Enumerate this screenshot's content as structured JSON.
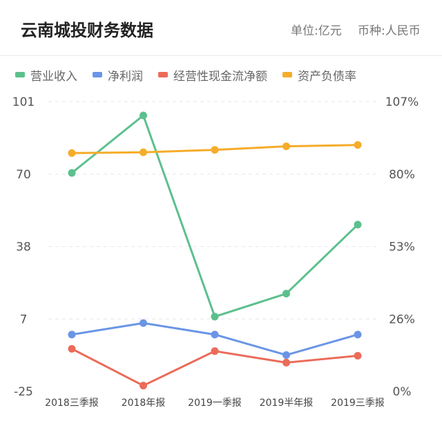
{
  "header": {
    "title": "云南城投财务数据",
    "unit": "单位:亿元",
    "currency": "币种:人民币"
  },
  "colors": {
    "revenue": "#5cc08d",
    "net_profit": "#6a95e6",
    "cash_flow": "#eb6b59",
    "debt_ratio": "#f5ac2a",
    "grid": "#e6e6e6"
  },
  "chart_data": {
    "type": "line",
    "categories": [
      "2018三季报",
      "2018年报",
      "2019一季报",
      "2019半年报",
      "2019三季报"
    ],
    "y_left": {
      "ticks": [
        "101",
        "70",
        "38",
        "7",
        "-25"
      ],
      "range": [
        -25,
        101
      ]
    },
    "y_right": {
      "ticks": [
        "107%",
        "80%",
        "53%",
        "26%",
        "0%"
      ],
      "range": [
        0,
        107
      ]
    },
    "series": [
      {
        "name": "营业收入",
        "axis": "left",
        "color": "#5cc08d",
        "values": [
          70,
          95,
          7.5,
          17.5,
          47.5
        ]
      },
      {
        "name": "净利润",
        "axis": "left",
        "color": "#6a95e6",
        "values": [
          -0.3,
          4.7,
          -0.3,
          -9.2,
          -0.3
        ]
      },
      {
        "name": "经营性现金流净额",
        "axis": "left",
        "color": "#eb6b59",
        "values": [
          -6.5,
          -22.5,
          -7.5,
          -12.5,
          -9.5
        ]
      },
      {
        "name": "资产负债率",
        "axis": "right",
        "color": "#f5ac2a",
        "values": [
          88,
          88.3,
          89.2,
          90.5,
          91
        ]
      }
    ],
    "grid": true,
    "legend": "top-left"
  }
}
